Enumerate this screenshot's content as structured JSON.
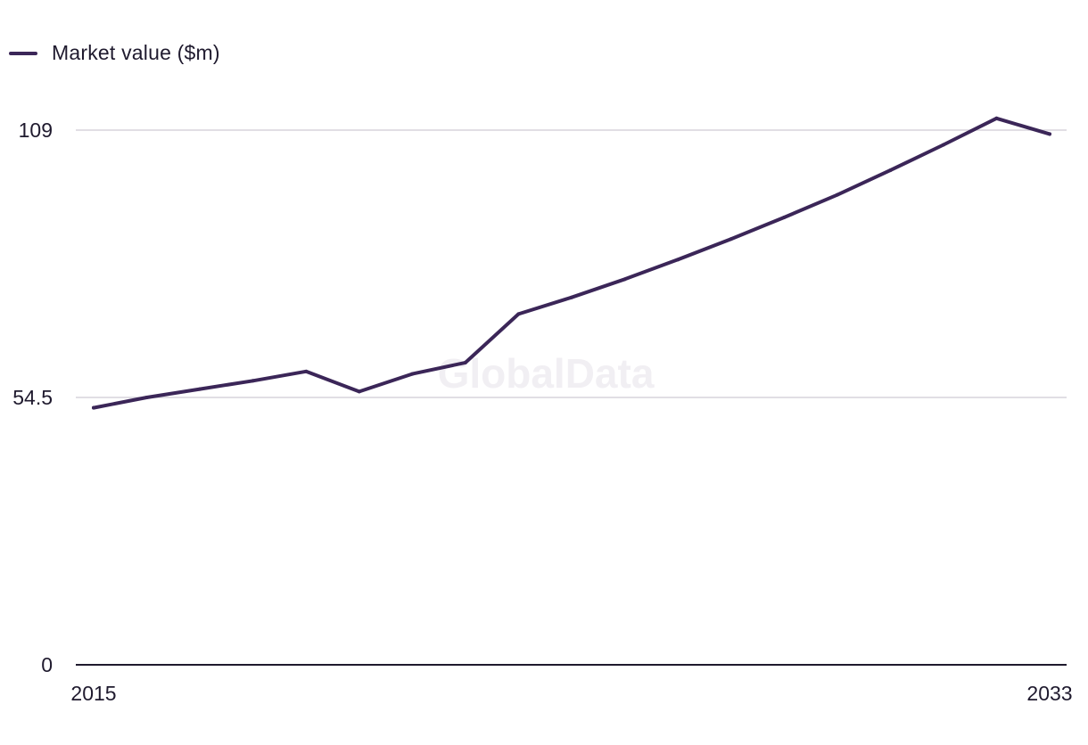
{
  "legend": {
    "label": "Market value ($m)",
    "color": "#3b2658"
  },
  "watermark": "GlobalData",
  "colors": {
    "line": "#3b2658",
    "grid": "#d7d4dc",
    "axis": "#1f1a2e",
    "text": "#1f1a2e"
  },
  "chart_data": {
    "type": "line",
    "title": "",
    "xlabel": "",
    "ylabel": "",
    "ylim": [
      0,
      109
    ],
    "yticks": [
      "0",
      "54.5",
      "109"
    ],
    "xticks": [
      "2015",
      "2033"
    ],
    "grid": true,
    "legend_position": "top-left",
    "x": [
      2015,
      2016,
      2017,
      2018,
      2019,
      2020,
      2021,
      2022,
      2023,
      2024,
      2025,
      2026,
      2027,
      2028,
      2029,
      2030,
      2031,
      2032,
      2033
    ],
    "series": [
      {
        "name": "Market value ($m)",
        "values": [
          52.4,
          54.5,
          56.2,
          57.9,
          59.8,
          55.7,
          59.3,
          61.6,
          71.5,
          74.9,
          78.6,
          82.6,
          86.8,
          91.2,
          95.8,
          100.8,
          106.0,
          111.4,
          108.2
        ]
      }
    ]
  }
}
